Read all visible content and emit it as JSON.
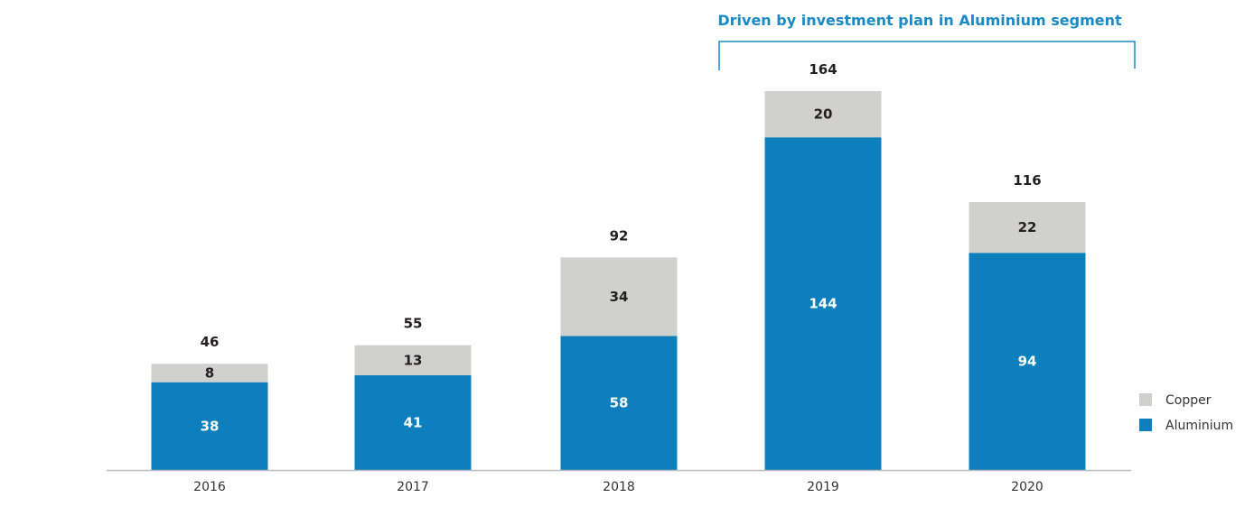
{
  "chart_data": {
    "type": "bar",
    "stacked": true,
    "categories": [
      "2016",
      "2017",
      "2018",
      "2019",
      "2020"
    ],
    "series": [
      {
        "name": "Aluminium",
        "values": [
          38,
          41,
          58,
          144,
          94
        ],
        "color": "#0d7fbc"
      },
      {
        "name": "Copper",
        "values": [
          8,
          13,
          34,
          20,
          22
        ],
        "color": "#d0d0ce"
      }
    ],
    "totals": [
      46,
      55,
      92,
      164,
      116
    ],
    "ylim": [
      0,
      164
    ],
    "grid": false,
    "legend_position": "bottom-right",
    "legend_order": [
      "Copper",
      "Aluminium"
    ],
    "annotation": {
      "text": "Driven by investment plan in Aluminium segment",
      "color": "#1a8ac4",
      "span_categories": [
        "2019",
        "2020"
      ]
    }
  }
}
